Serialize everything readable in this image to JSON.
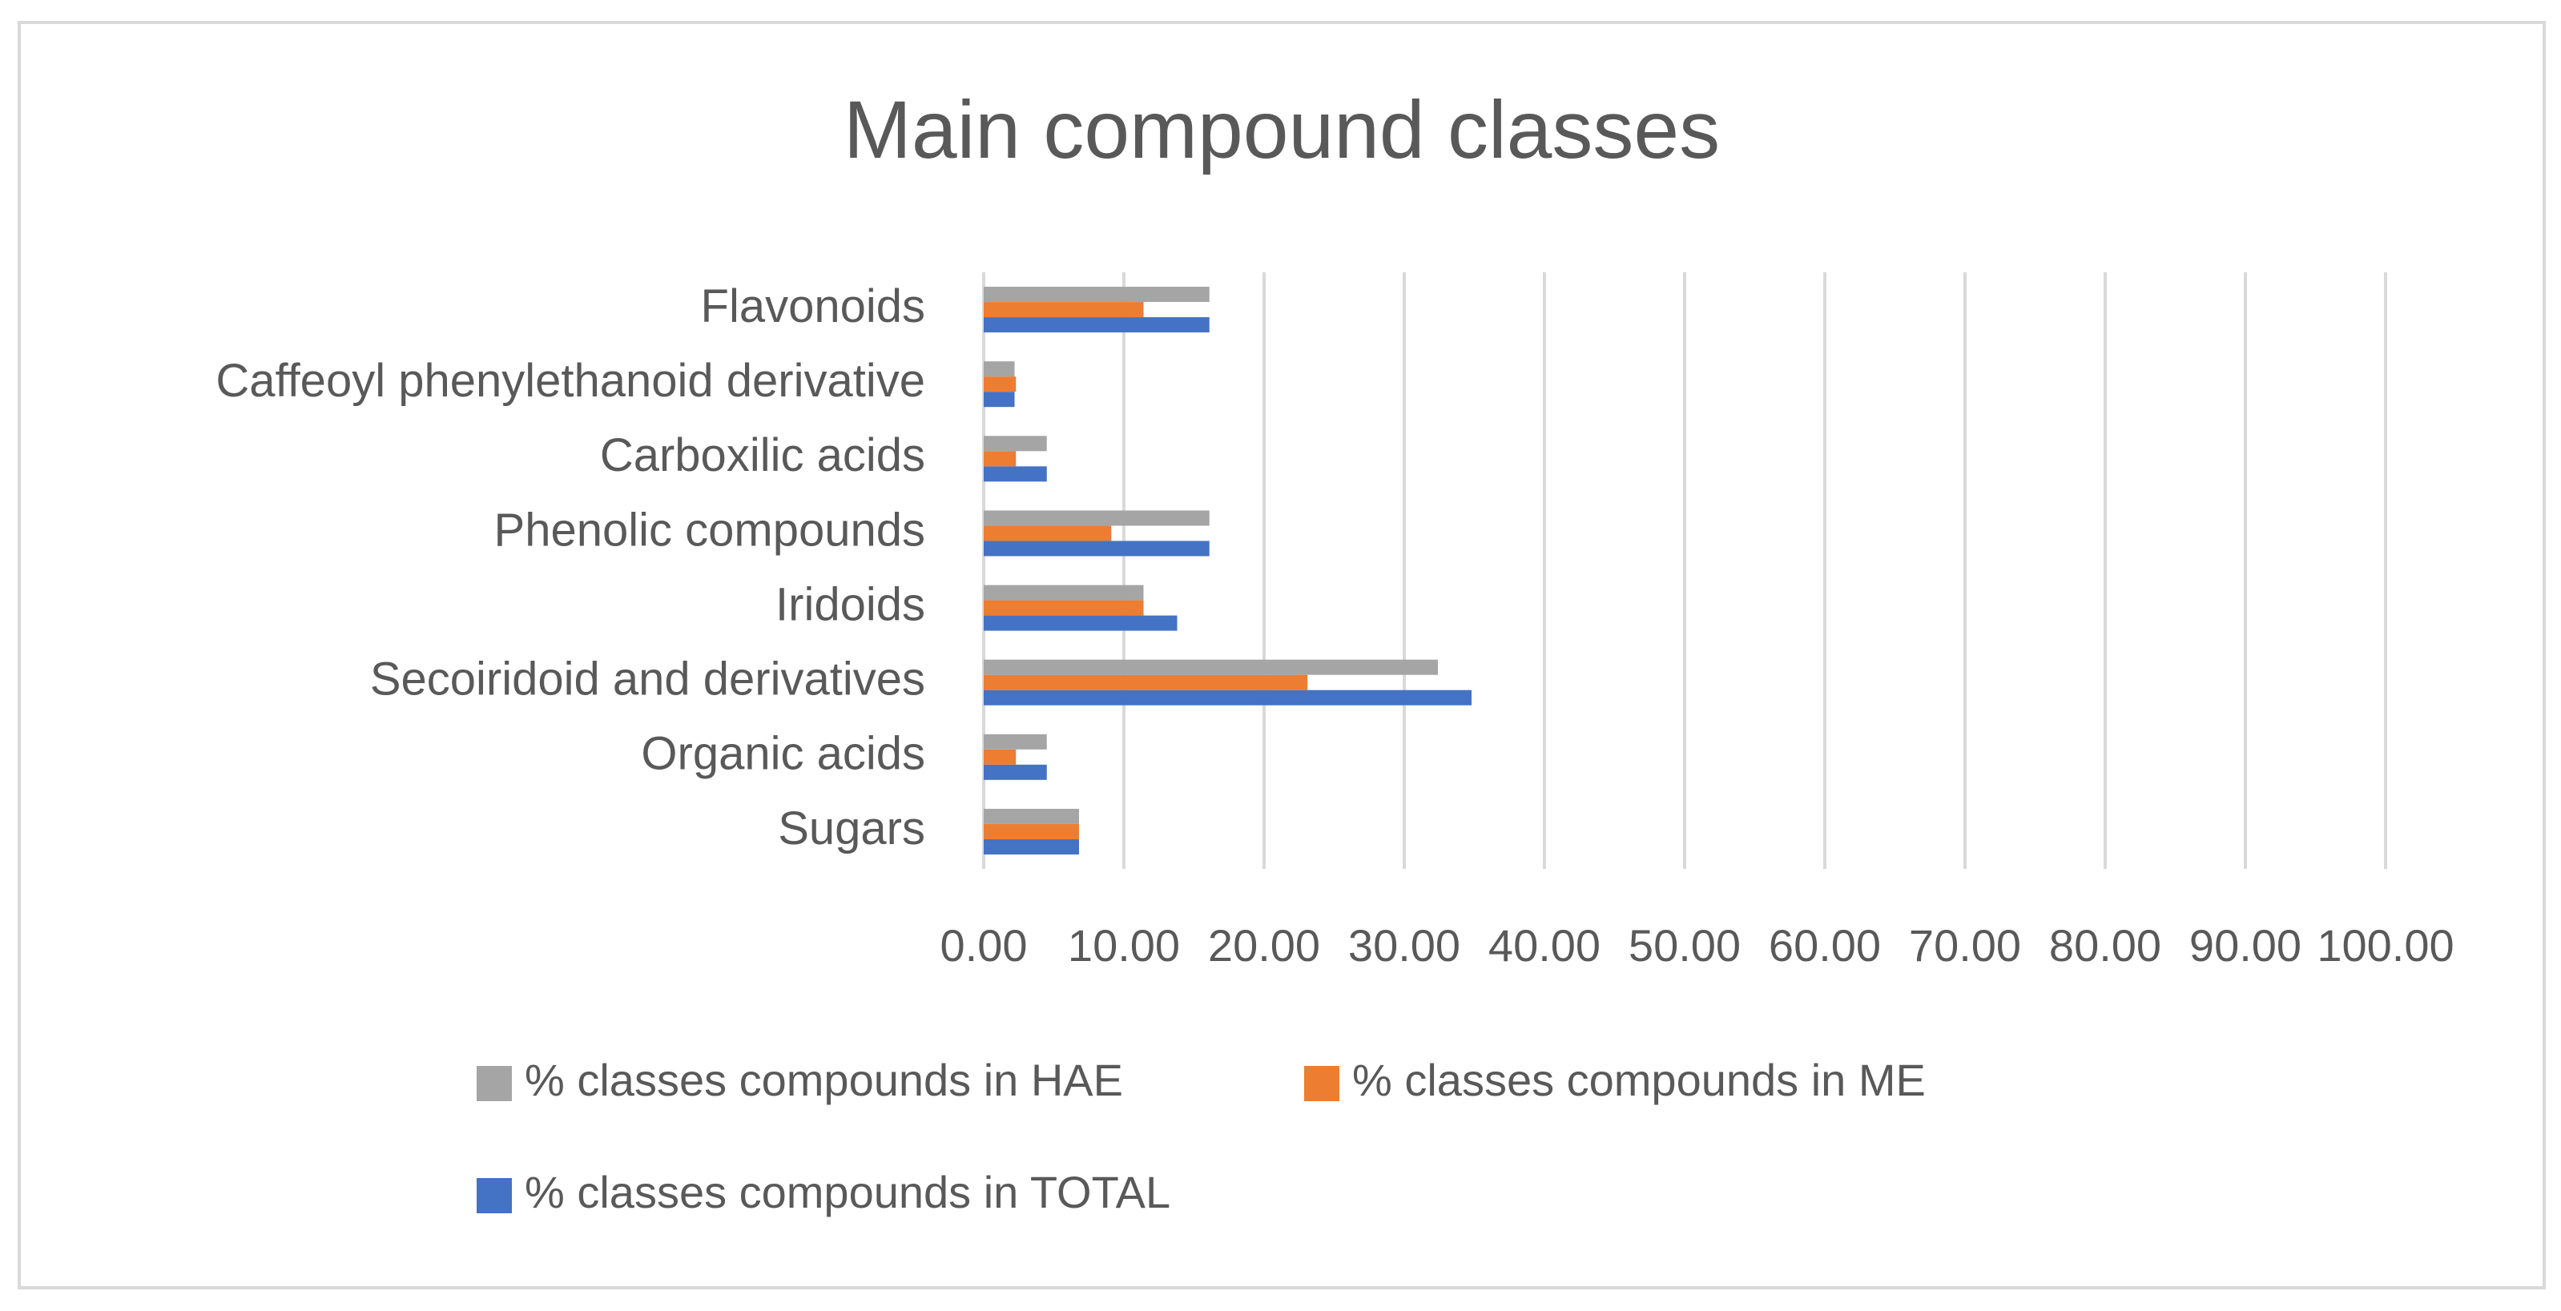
{
  "chart_data": {
    "type": "bar",
    "orientation": "horizontal",
    "title": "Main compound classes",
    "xlabel": "",
    "ylabel": "",
    "xlim": [
      0,
      100
    ],
    "x_ticks": [
      0,
      10,
      20,
      30,
      40,
      50,
      60,
      70,
      80,
      90,
      100
    ],
    "x_tick_labels": [
      "0.00",
      "10.00",
      "20.00",
      "30.00",
      "40.00",
      "50.00",
      "60.00",
      "70.00",
      "80.00",
      "90.00",
      "100.00"
    ],
    "grid": "vertical",
    "legend_position": "bottom",
    "categories": [
      "Sugars",
      "Organic acids",
      "Secoiridoid and derivatives",
      "Iridoids",
      "Phenolic compounds",
      "Carboxilic acids",
      "Caffeoyl phenylethanoid derivative",
      "Flavonoids"
    ],
    "series": [
      {
        "name": "% classes compounds in TOTAL",
        "color": "#4472C4",
        "values": [
          6.8,
          4.5,
          34.8,
          13.8,
          16.1,
          4.5,
          2.2,
          16.1
        ]
      },
      {
        "name": "% classes compounds in ME",
        "color": "#ED7D31",
        "values": [
          6.8,
          2.3,
          23.1,
          11.4,
          9.1,
          2.3,
          2.3,
          11.4
        ]
      },
      {
        "name": "% classes compounds in HAE",
        "color": "#A5A5A5",
        "values": [
          6.8,
          4.5,
          32.4,
          11.4,
          16.1,
          4.5,
          2.2,
          16.1
        ]
      }
    ]
  }
}
